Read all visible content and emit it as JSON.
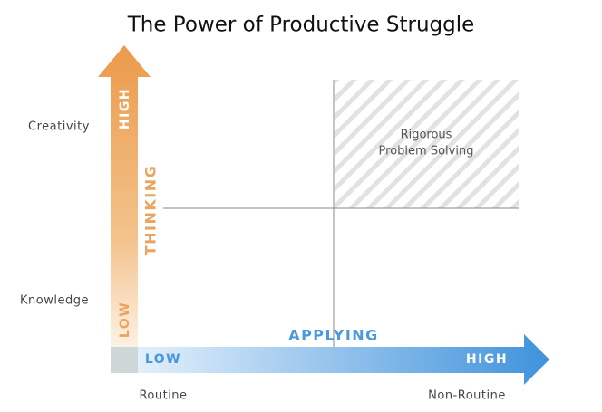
{
  "title": "The Power of Productive Struggle",
  "vertical_axis": {
    "label": "THINKING",
    "high": "HIGH",
    "low": "LOW",
    "levels": [
      "Creativity",
      "Knowledge"
    ]
  },
  "horizontal_axis": {
    "label": "APPLYING",
    "high": "HIGH",
    "low": "LOW",
    "levels": [
      "Routine",
      "Non-Routine"
    ]
  },
  "quadrant": {
    "lines": [
      "Rigorous",
      "Problem Solving"
    ]
  }
}
